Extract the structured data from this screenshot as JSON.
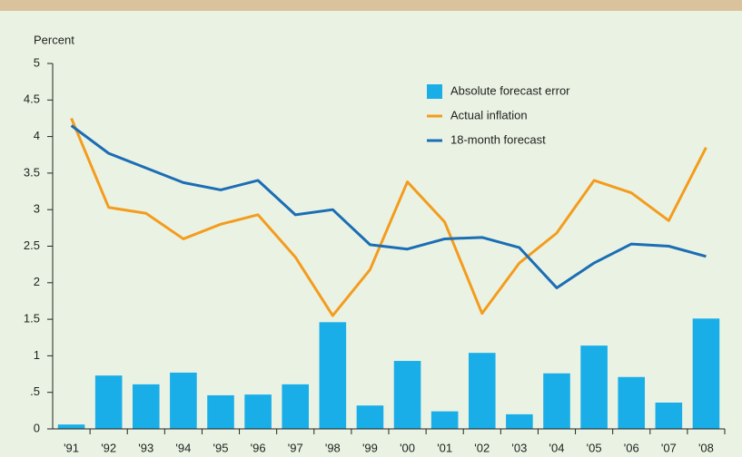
{
  "chart_data": {
    "type": "bar_line",
    "ylabel": "Percent",
    "categories": [
      "'91",
      "'92",
      "'93",
      "'94",
      "'95",
      "'96",
      "'97",
      "'98",
      "'99",
      "'00",
      "'01",
      "'02",
      "'03",
      "'04",
      "'05",
      "'06",
      "'07",
      "'08"
    ],
    "series": [
      {
        "name": "Absolute forecast error",
        "type": "bar",
        "color": "#1aaee8",
        "values": [
          0.06,
          0.73,
          0.61,
          0.77,
          0.46,
          0.47,
          0.61,
          1.46,
          0.32,
          0.93,
          0.24,
          1.04,
          0.2,
          0.76,
          1.14,
          0.71,
          0.36,
          1.51
        ]
      },
      {
        "name": "Actual inflation",
        "type": "line",
        "color": "#f39c1e",
        "values": [
          4.25,
          3.03,
          2.95,
          2.6,
          2.8,
          2.93,
          2.35,
          1.55,
          2.18,
          3.38,
          2.83,
          1.58,
          2.27,
          2.68,
          3.4,
          3.23,
          2.85,
          3.85
        ]
      },
      {
        "name": "18-month forecast",
        "type": "line",
        "color": "#1b6db5",
        "values": [
          4.15,
          3.77,
          3.57,
          3.37,
          3.27,
          3.4,
          2.93,
          3.0,
          2.52,
          2.46,
          2.6,
          2.62,
          2.48,
          1.93,
          2.27,
          2.53,
          2.5,
          2.36
        ]
      }
    ],
    "ylim": [
      0,
      5
    ],
    "yticks": [
      0,
      {
        "value": 0.5,
        "label": ".5"
      },
      1,
      1.5,
      2,
      2.5,
      3,
      3.5,
      4,
      4.5,
      5
    ],
    "legend": "upper right"
  }
}
